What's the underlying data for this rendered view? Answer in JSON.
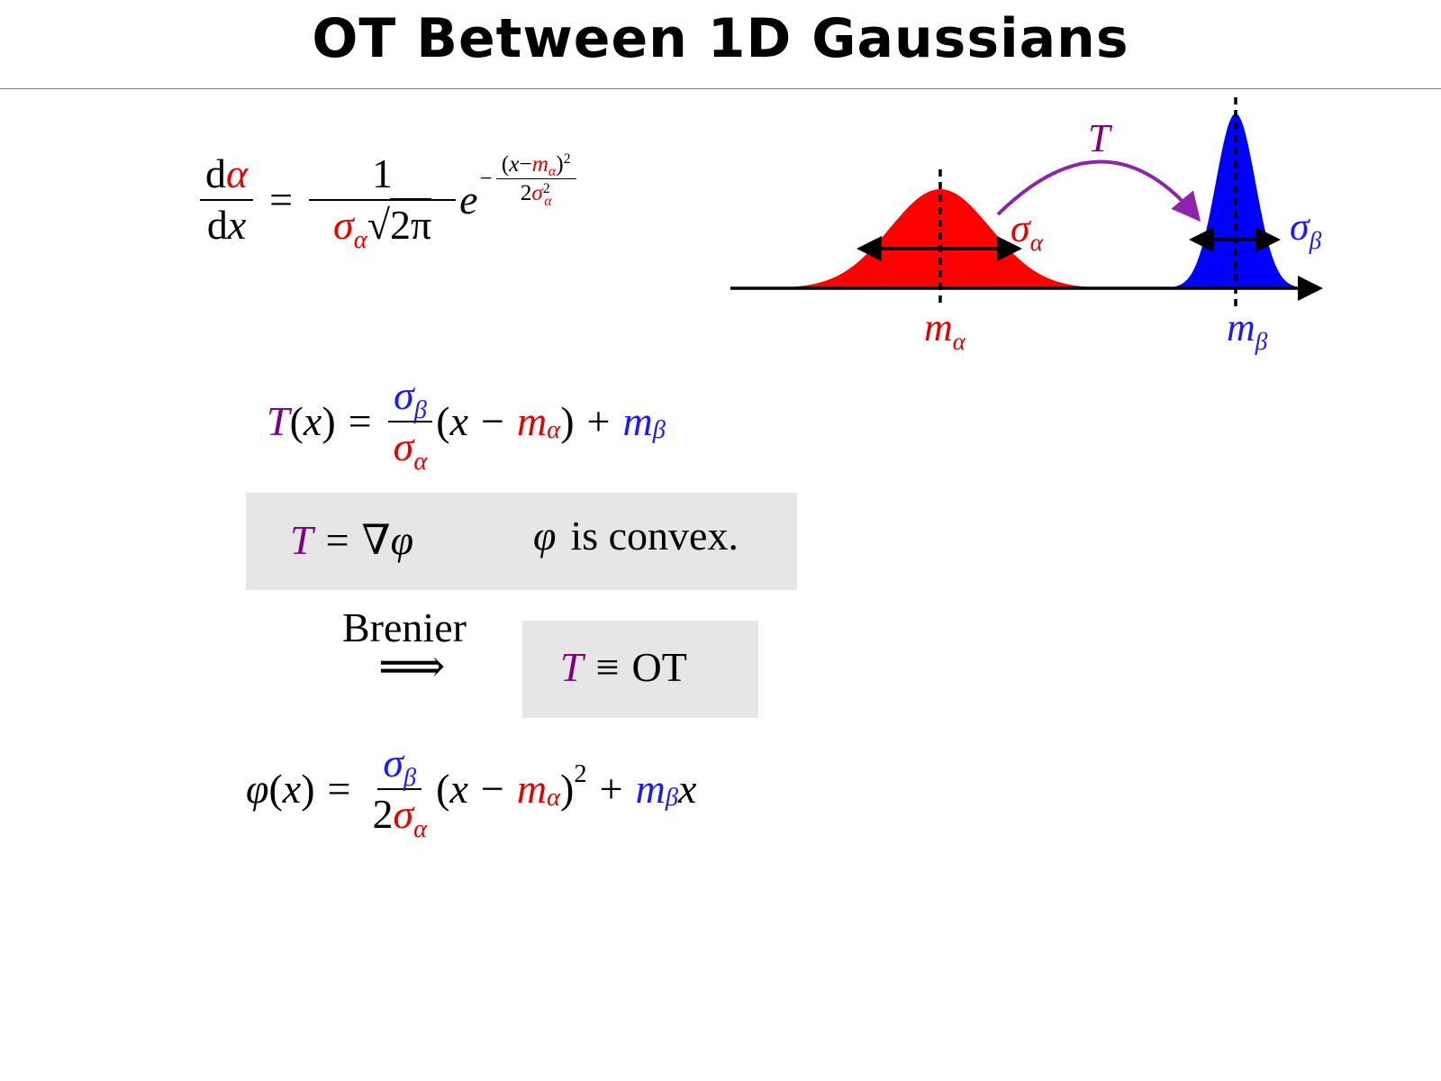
{
  "title": "OT Between 1D Gaussians",
  "density": {
    "num": [
      "d",
      "α"
    ],
    "den": [
      "d",
      "x"
    ],
    "eq": "=",
    "coef_num": "1",
    "coef_den": [
      "σ",
      "α",
      "√",
      "2π"
    ],
    "base": "e",
    "exp_sign": "−",
    "exp_num": [
      "(",
      "x",
      "−",
      "m",
      "α",
      ")",
      "2"
    ],
    "exp_den": [
      "2",
      "σ",
      "2",
      "α"
    ]
  },
  "diagram": {
    "map_label": "T",
    "sigma_alpha": [
      "σ",
      "α"
    ],
    "sigma_beta": [
      "σ",
      "β"
    ],
    "mean_alpha": [
      "m",
      "α"
    ],
    "mean_beta": [
      "m",
      "β"
    ]
  },
  "map": {
    "lhs": [
      "T",
      "(",
      "x",
      ")"
    ],
    "eq": "=",
    "frac_num": [
      "σ",
      "β"
    ],
    "frac_den": [
      "σ",
      "α"
    ],
    "rhs": [
      "(",
      "x",
      "−",
      "m",
      "α",
      ")",
      "+",
      "m",
      "β"
    ]
  },
  "gradient": {
    "lhs": [
      "T",
      "=",
      "∇",
      "φ"
    ],
    "convex": [
      "φ",
      "is convex."
    ]
  },
  "brenier": {
    "label": "Brenier",
    "arrow": "⟹"
  },
  "equivalence": [
    "T",
    "≡",
    "OT"
  ],
  "potential": {
    "lhs": [
      "φ",
      "(",
      "x",
      ")"
    ],
    "eq": "=",
    "frac_num": [
      "σ",
      "β"
    ],
    "frac_den": [
      "2",
      "σ",
      "α"
    ],
    "rhs": [
      "(",
      "x",
      "−",
      "m",
      "α",
      ")",
      "2",
      "+",
      "m",
      "β",
      "x"
    ]
  }
}
